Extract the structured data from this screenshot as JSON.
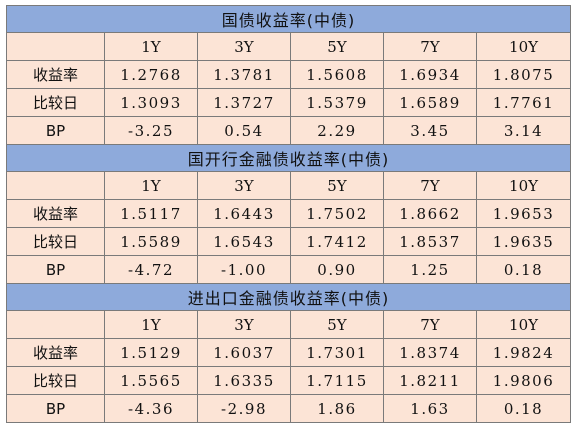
{
  "sections": [
    {
      "title": "国债收益率(中债)",
      "columns": [
        "1Y",
        "3Y",
        "5Y",
        "7Y",
        "10Y"
      ],
      "rows": [
        {
          "label": "收益率",
          "values": [
            "1.2768",
            "1.3781",
            "1.5608",
            "1.6934",
            "1.8075"
          ]
        },
        {
          "label": "比较日",
          "values": [
            "1.3093",
            "1.3727",
            "1.5379",
            "1.6589",
            "1.7761"
          ]
        },
        {
          "label": "BP",
          "values": [
            "-3.25",
            "0.54",
            "2.29",
            "3.45",
            "3.14"
          ]
        }
      ]
    },
    {
      "title": "国开行金融债收益率(中债)",
      "columns": [
        "1Y",
        "3Y",
        "5Y",
        "7Y",
        "10Y"
      ],
      "rows": [
        {
          "label": "收益率",
          "values": [
            "1.5117",
            "1.6443",
            "1.7502",
            "1.8662",
            "1.9653"
          ]
        },
        {
          "label": "比较日",
          "values": [
            "1.5589",
            "1.6543",
            "1.7412",
            "1.8537",
            "1.9635"
          ]
        },
        {
          "label": "BP",
          "values": [
            "-4.72",
            "-1.00",
            "0.90",
            "1.25",
            "0.18"
          ]
        }
      ]
    },
    {
      "title": "进出口金融债收益率(中债)",
      "columns": [
        "1Y",
        "3Y",
        "5Y",
        "7Y",
        "10Y"
      ],
      "rows": [
        {
          "label": "收益率",
          "values": [
            "1.5129",
            "1.6037",
            "1.7301",
            "1.8374",
            "1.9824"
          ]
        },
        {
          "label": "比较日",
          "values": [
            "1.5565",
            "1.6335",
            "1.7115",
            "1.8211",
            "1.9806"
          ]
        },
        {
          "label": "BP",
          "values": [
            "-4.36",
            "-2.98",
            "1.86",
            "1.63",
            "0.18"
          ]
        }
      ]
    }
  ],
  "colors": {
    "title_bg": "#8eaadb",
    "cell_bg": "#fce4d6",
    "border": "#7a7a7a"
  }
}
